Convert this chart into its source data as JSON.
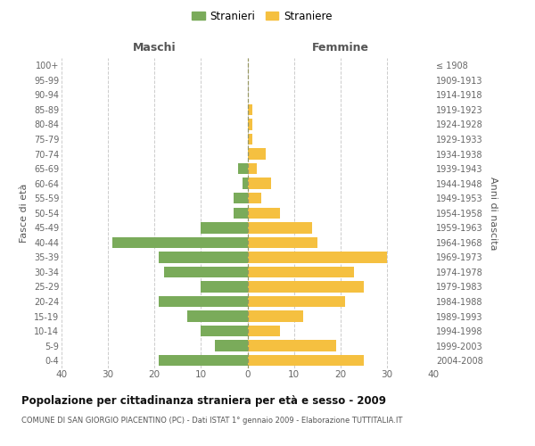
{
  "age_groups": [
    "0-4",
    "5-9",
    "10-14",
    "15-19",
    "20-24",
    "25-29",
    "30-34",
    "35-39",
    "40-44",
    "45-49",
    "50-54",
    "55-59",
    "60-64",
    "65-69",
    "70-74",
    "75-79",
    "80-84",
    "85-89",
    "90-94",
    "95-99",
    "100+"
  ],
  "birth_years": [
    "2004-2008",
    "1999-2003",
    "1994-1998",
    "1989-1993",
    "1984-1988",
    "1979-1983",
    "1974-1978",
    "1969-1973",
    "1964-1968",
    "1959-1963",
    "1954-1958",
    "1949-1953",
    "1944-1948",
    "1939-1943",
    "1934-1938",
    "1929-1933",
    "1924-1928",
    "1919-1923",
    "1914-1918",
    "1909-1913",
    "≤ 1908"
  ],
  "maschi": [
    19,
    7,
    10,
    13,
    19,
    10,
    18,
    19,
    29,
    10,
    3,
    3,
    1,
    2,
    0,
    0,
    0,
    0,
    0,
    0,
    0
  ],
  "femmine": [
    25,
    19,
    7,
    12,
    21,
    25,
    23,
    30,
    15,
    14,
    7,
    3,
    5,
    2,
    4,
    1,
    1,
    1,
    0,
    0,
    0
  ],
  "color_maschi": "#7aab5a",
  "color_femmine": "#f5c040",
  "title": "Popolazione per cittadinanza straniera per età e sesso - 2009",
  "subtitle": "COMUNE DI SAN GIORGIO PIACENTINO (PC) - Dati ISTAT 1° gennaio 2009 - Elaborazione TUTTITALIA.IT",
  "xlabel_left": "Maschi",
  "xlabel_right": "Femmine",
  "ylabel_left": "Fasce di età",
  "ylabel_right": "Anni di nascita",
  "legend_maschi": "Stranieri",
  "legend_femmine": "Straniere",
  "xlim": 40,
  "background_color": "#ffffff",
  "grid_color": "#cccccc"
}
